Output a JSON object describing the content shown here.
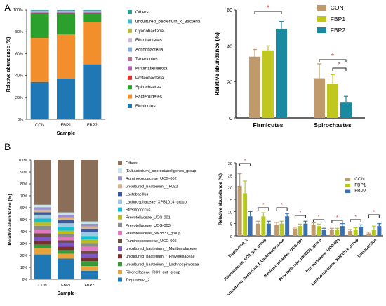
{
  "panel_labels": [
    "A",
    "B"
  ],
  "significance_mark": "*",
  "colors": {
    "Others": "#2a9d8f",
    "uncultured_bacterium_k_Bacteria": "#48b8c8",
    "Cyanobacteria": "#b5b84a",
    "Fibrobacteres": "#c8b8d8",
    "Actinobacteria": "#8aa8d8",
    "Tenericutes": "#b86e8c",
    "Kiritimatiellaeota": "#b060b0",
    "Proteobacteria": "#d93030",
    "Spirochaetes": "#2ca02c",
    "Bacteroidetes": "#f28e2b",
    "Firmicutes": "#1f77b4",
    "CON": "#c19a6b",
    "FBP1": "#c0c820",
    "FBP2": "#1a8aa0",
    "sig": "#e0302a"
  },
  "chart_data": [
    {
      "id": "A-left",
      "type": "bar",
      "stacked": true,
      "xlabel": "Sample",
      "ylabel": "Relative abundance (%)",
      "categories": [
        "CON",
        "FBP1",
        "FBP2"
      ],
      "yticks": [
        "0%",
        "20%",
        "40%",
        "60%",
        "80%",
        "100%"
      ],
      "ylim": [
        0,
        100
      ],
      "legend_position": "right",
      "series": [
        {
          "name": "Firmicutes",
          "values": [
            34,
            37,
            50
          ]
        },
        {
          "name": "Bacteroidetes",
          "values": [
            40,
            40,
            38
          ]
        },
        {
          "name": "Spirochaetes",
          "values": [
            22,
            19,
            8
          ]
        },
        {
          "name": "Proteobacteria",
          "values": [
            0.5,
            0.5,
            0.5
          ]
        },
        {
          "name": "Kiritimatiellaeota",
          "values": [
            0.5,
            0.5,
            0.5
          ]
        },
        {
          "name": "Tenericutes",
          "values": [
            0.5,
            0.5,
            0.5
          ]
        },
        {
          "name": "Actinobacteria",
          "values": [
            0.5,
            0.5,
            0.5
          ]
        },
        {
          "name": "Fibrobacteres",
          "values": [
            0.5,
            0.5,
            0.5
          ]
        },
        {
          "name": "Cyanobacteria",
          "values": [
            0.3,
            0.3,
            0.3
          ]
        },
        {
          "name": "uncultured_bacterium_k_Bacteria",
          "values": [
            0.2,
            0.2,
            0.2
          ]
        },
        {
          "name": "Others",
          "values": [
            0.5,
            0.5,
            0.5
          ]
        }
      ],
      "legend_order": [
        "Others",
        "uncultured_bacterium_k_Bacteria",
        "Cyanobacteria",
        "Fibrobacteres",
        "Actinobacteria",
        "Tenericutes",
        "Kiritimatiellaeota",
        "Proteobacteria",
        "Spirochaetes",
        "Bacteroidetes",
        "Firmicutes"
      ]
    },
    {
      "id": "A-right",
      "type": "bar",
      "ylabel": "Relative abundance (%)",
      "categories": [
        "Firmicutes",
        "Spirochaetes"
      ],
      "ylim": [
        0,
        60
      ],
      "yticks": [
        0,
        20,
        40,
        60
      ],
      "legend_position": "top-right",
      "series": [
        {
          "name": "CON",
          "values": [
            34,
            22
          ],
          "errors": [
            4,
            8
          ]
        },
        {
          "name": "FBP1",
          "values": [
            37.5,
            19
          ],
          "errors": [
            2.5,
            5
          ]
        },
        {
          "name": "FBP2",
          "values": [
            49.5,
            8.5
          ],
          "errors": [
            4,
            3.5
          ]
        }
      ],
      "annotations": [
        "*",
        "*",
        "*"
      ]
    },
    {
      "id": "B-left",
      "type": "bar",
      "stacked": true,
      "xlabel": "Sample",
      "ylabel": "Relative abundance (%)",
      "categories": [
        "CON",
        "FBP1",
        "FBP2"
      ],
      "yticks": [
        "0%",
        "10%",
        "20%",
        "30%",
        "40%",
        "50%",
        "60%",
        "70%",
        "80%",
        "90%",
        "100%"
      ],
      "ylim": [
        0,
        100
      ],
      "legend_position": "right",
      "series": [
        {
          "name": "Treponema_2",
          "values": [
            20,
            17,
            7
          ],
          "color": "#1f77b4"
        },
        {
          "name": "Rikenellaceae_RC9_gut_group",
          "values": [
            5,
            4,
            4
          ],
          "color": "#e8a33a"
        },
        {
          "name": "uncultured_bacterium_f_Lachnospiraceae",
          "values": [
            3,
            3,
            4
          ],
          "color": "#3a9a3a"
        },
        {
          "name": "uncultured_bacterium_f_Prevotellaceae",
          "values": [
            3,
            3,
            3
          ],
          "color": "#7a2e2e"
        },
        {
          "name": "uncultured_bacterium_f_Muribaculaceae",
          "values": [
            3,
            3,
            3
          ],
          "color": "#7e57c2"
        },
        {
          "name": "Ruminococcaceae_UCG-005",
          "values": [
            3,
            2,
            3
          ],
          "color": "#6d4c41"
        },
        {
          "name": "Prevotellaceae_NK3B31_group",
          "values": [
            3,
            3,
            3
          ],
          "color": "#e377c2"
        },
        {
          "name": "Prevotellaceae_UCG-003",
          "values": [
            3,
            2,
            3
          ],
          "color": "#8c8c8c"
        },
        {
          "name": "Prevotellaceae_UCG-001",
          "values": [
            3,
            3,
            3
          ],
          "color": "#bcbd22"
        },
        {
          "name": "Streptococcus",
          "values": [
            3,
            3,
            3
          ],
          "color": "#17becf"
        },
        {
          "name": "Lachnospiraceae_XPB1014_group",
          "values": [
            3,
            3,
            3
          ],
          "color": "#9ecae1"
        },
        {
          "name": "Lactobacillus",
          "values": [
            2,
            3,
            3
          ],
          "color": "#3c5a9a"
        },
        {
          "name": "uncultured_bacterium_f_F082",
          "values": [
            2,
            2,
            2
          ],
          "color": "#d9b38c"
        },
        {
          "name": "Ruminococcaceae_UCG-002",
          "values": [
            2,
            2,
            2
          ],
          "color": "#9b8fc7"
        },
        {
          "name": "[Eubacterium]_coprostanoligenes_group",
          "values": [
            2,
            2,
            2
          ],
          "color": "#c7e3ec"
        },
        {
          "name": "Others",
          "values": [
            36,
            43,
            51
          ],
          "color": "#8b6e58"
        }
      ],
      "legend_order": [
        "Others",
        "[Eubacterium]_coprostanoligenes_group",
        "Ruminococcaceae_UCG-002",
        "uncultured_bacterium_f_F082",
        "Lactobacillus",
        "Lachnospiraceae_XPB1014_group",
        "Streptococcus",
        "Prevotellaceae_UCG-001",
        "Prevotellaceae_UCG-003",
        "Prevotellaceae_NK3B31_group",
        "Ruminococcaceae_UCG-005",
        "uncultured_bacterium_f_Muribaculaceae",
        "uncultured_bacterium_f_Prevotellaceae",
        "uncultured_bacterium_f_Lachnospiraceae",
        "Rikenellaceae_RC9_gut_group",
        "Treponema_2"
      ]
    },
    {
      "id": "B-right",
      "type": "bar",
      "ylabel": "Relative abundance (%)",
      "categories": [
        "Treponema_2",
        "Rikenellaceae_RC9_gut_group",
        "uncultured_bacterium_f_Lachnospiraceae",
        "Ruminococcaceae_UCG-005",
        "Prevotellaceae_NK3B31_group",
        "Prevotellaceae_UCG-003",
        "Lachnospiraceae_XPB1014_group",
        "Lactobacillus"
      ],
      "ylim": [
        0,
        30
      ],
      "yticks": [
        0,
        5,
        10,
        15,
        20,
        25,
        30
      ],
      "legend_position": "top-right",
      "series": [
        {
          "name": "CON",
          "values": [
            20.5,
            5,
            4.5,
            3,
            4.5,
            2.5,
            2,
            1
          ],
          "errors": [
            5,
            1,
            1,
            0.5,
            0.8,
            0.6,
            0.6,
            0.5
          ],
          "color": "#c19a6b"
        },
        {
          "name": "FBP1",
          "values": [
            17.5,
            8,
            5,
            4,
            4,
            2.5,
            2.5,
            2.5
          ],
          "errors": [
            5,
            1.5,
            1,
            0.8,
            0.8,
            0.6,
            0.8,
            1.5
          ],
          "color": "#b6c822"
        },
        {
          "name": "FBP2",
          "values": [
            8,
            5,
            8,
            5,
            2.5,
            4,
            3.5,
            4
          ],
          "errors": [
            2,
            1,
            1.2,
            1,
            0.6,
            1,
            1,
            1
          ],
          "color": "#3a6fb0"
        }
      ],
      "annotations": [
        "*",
        "*",
        "*",
        "*",
        "*",
        "*",
        "*",
        "*"
      ]
    }
  ]
}
